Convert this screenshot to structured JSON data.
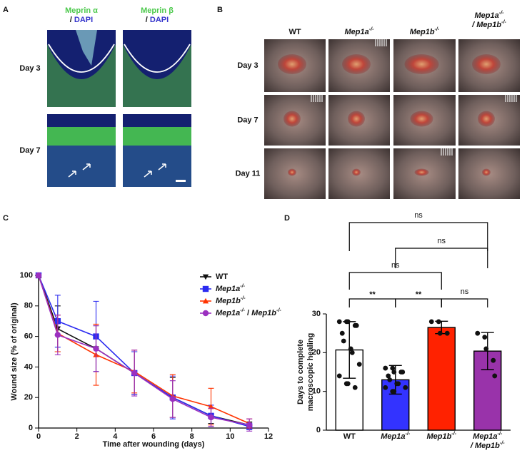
{
  "panel_labels": [
    "A",
    "B",
    "C",
    "D"
  ],
  "panel_a": {
    "headers": [
      [
        {
          "text": "Meprin α",
          "color": "#4cc94c"
        },
        {
          "text": "/ ",
          "newline": true
        },
        {
          "text": "DAPI",
          "color": "#3434cc"
        }
      ],
      [
        {
          "text": "Meprin β",
          "color": "#4cc94c"
        },
        {
          "text": "/ ",
          "newline": true
        },
        {
          "text": "DAPI",
          "color": "#3434cc"
        }
      ]
    ],
    "rows": [
      "Day 3",
      "Day 7"
    ]
  },
  "panel_b": {
    "columns": [
      "WT",
      [
        {
          "text": "Mep1a",
          "sup": "-/-",
          "italic": true
        }
      ],
      [
        {
          "text": "Mep1b",
          "sup": "-/-",
          "italic": true
        }
      ],
      [
        {
          "text": "Mep1a",
          "sup": "-/-",
          "italic": true
        },
        {
          "text": "/ Mep1b",
          "sup": "-/-",
          "italic": true,
          "newline": true
        }
      ]
    ],
    "rows": [
      "Day 3",
      "Day 7",
      "Day 11"
    ]
  },
  "chart_data": [
    {
      "type": "line",
      "xlabel": "Time after wounding (days)",
      "ylabel": "Wound size (% of original)",
      "x": [
        0,
        1,
        3,
        5,
        7,
        9,
        11
      ],
      "xlim": [
        0,
        12
      ],
      "xticks": [
        0,
        2,
        4,
        6,
        8,
        10,
        12
      ],
      "ylim": [
        0,
        100
      ],
      "yticks": [
        0,
        20,
        40,
        60,
        80,
        100
      ],
      "series": [
        {
          "name": "WT",
          "color": "#111111",
          "marker": "triangle-down",
          "values": [
            100,
            65,
            52,
            36,
            20,
            8,
            2
          ],
          "errors": [
            0,
            15,
            15,
            14,
            13,
            5,
            2
          ]
        },
        {
          "name": [
            {
              "text": "Mep1a",
              "sup": "-/-",
              "italic": true
            }
          ],
          "color": "#2b2bf0",
          "marker": "square",
          "values": [
            100,
            70,
            60,
            36,
            20,
            8,
            1
          ],
          "errors": [
            0,
            17,
            23,
            14,
            14,
            7,
            2
          ]
        },
        {
          "name": [
            {
              "text": "Mep1b",
              "sup": "-/-",
              "italic": true
            }
          ],
          "color": "#ff3300",
          "marker": "triangle",
          "values": [
            100,
            62,
            48,
            37,
            21,
            14,
            3
          ],
          "errors": [
            0,
            12,
            20,
            14,
            14,
            12,
            3
          ]
        },
        {
          "name": [
            {
              "text": "Mep1a",
              "sup": "-/-",
              "italic": true
            },
            {
              "text": " / "
            },
            {
              "text": "Mep1b",
              "sup": "-/-",
              "italic": true
            }
          ],
          "color": "#9b30c0",
          "marker": "circle",
          "values": [
            100,
            61,
            52,
            36,
            19,
            7,
            2
          ],
          "errors": [
            0,
            13,
            15,
            15,
            12,
            6,
            4
          ]
        }
      ]
    },
    {
      "type": "bar",
      "ylabel": [
        "Days to complete",
        "macroscopic healing"
      ],
      "categories": [
        "WT",
        [
          {
            "text": "Mep1a",
            "sup": "-/-",
            "italic": true
          }
        ],
        [
          {
            "text": "Mep1b",
            "sup": "-/-",
            "italic": true
          }
        ],
        [
          {
            "text": "Mep1a",
            "sup": "-/-",
            "italic": true
          },
          {
            "text": "/ Mep1b",
            "sup": "-/-",
            "italic": true,
            "newline": true
          }
        ]
      ],
      "values": [
        20.7,
        13,
        26.5,
        20.4
      ],
      "errors": [
        7.3,
        3.7,
        1.6,
        4.8
      ],
      "colors": [
        "#ffffff",
        "#3333ff",
        "#ff2200",
        "#9933aa"
      ],
      "points": [
        [
          28,
          28,
          28,
          27,
          27,
          25,
          23,
          21,
          20,
          17,
          14,
          12,
          12,
          11
        ],
        [
          16,
          16,
          15,
          15,
          15,
          14,
          13,
          12,
          12,
          11,
          11,
          10,
          10
        ],
        [
          28,
          28,
          25,
          25
        ],
        [
          25,
          24,
          21,
          18,
          14
        ]
      ],
      "ylim": [
        0,
        30
      ],
      "yticks": [
        0,
        10,
        20,
        30
      ],
      "significance": [
        "ns",
        "ns",
        "ns",
        "**",
        "**",
        "ns"
      ]
    }
  ]
}
